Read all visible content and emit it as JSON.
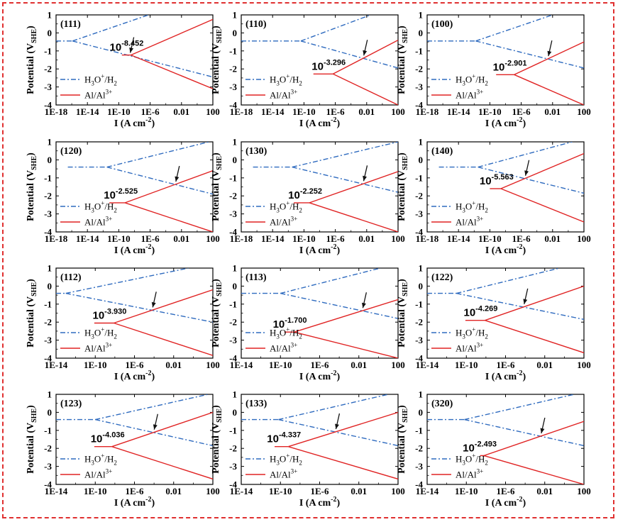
{
  "chart_data": [
    {
      "type": "line",
      "title": "(111)",
      "xlabel": "I (A cm",
      "ylabel": "Potential (V",
      "xlim": [
        -18,
        2
      ],
      "ylim": [
        -4,
        1
      ],
      "xticks": [
        "1E-18",
        "1E-14",
        "1E-10",
        "1E-6",
        "0.01",
        "100"
      ],
      "yticks": [
        "1",
        "0",
        "-1",
        "-2",
        "-3",
        "-4"
      ],
      "legend": [
        "H3O+/H2",
        "Al/Al3+"
      ],
      "legend_position": "left",
      "h3o": {
        "eq": [
          [
            -18,
            -0.45
          ],
          [
            -15.9,
            -0.45
          ]
        ],
        "anodic": [
          [
            -15.9,
            -0.45
          ],
          [
            -6.2,
            1
          ]
        ],
        "cathodic": [
          [
            -15.9,
            -0.45
          ],
          [
            2,
            -2.45
          ]
        ]
      },
      "al": {
        "eq": [
          [
            -9.6,
            -1.23
          ],
          [
            -8.45,
            -1.23
          ]
        ],
        "anodic": [
          [
            -8.45,
            -1.23
          ],
          [
            2,
            0.75
          ]
        ],
        "cathodic": [
          [
            -8.45,
            -1.23
          ],
          [
            2,
            -3.1
          ]
        ]
      },
      "exchange_label": "10",
      "exchange_exp": "-8.452"
    },
    {
      "type": "line",
      "title": "(110)",
      "xlabel": "I (A cm",
      "ylabel": "Potential (V",
      "xlim": [
        -18,
        2
      ],
      "ylim": [
        -4,
        1
      ],
      "xticks": [
        "1E-18",
        "1E-14",
        "1E-10",
        "1E-6",
        "0.01",
        "100"
      ],
      "yticks": [
        "1",
        "0",
        "-1",
        "-2",
        "-3",
        "-4"
      ],
      "legend": [
        "H3O+/H2",
        "Al/Al3+"
      ],
      "legend_position": "left",
      "h3o": {
        "eq": [
          [
            -18,
            -0.45
          ],
          [
            -10.4,
            -0.45
          ]
        ],
        "anodic": [
          [
            -10.4,
            -0.45
          ],
          [
            -1.5,
            1
          ]
        ],
        "cathodic": [
          [
            -10.4,
            -0.45
          ],
          [
            2,
            -1.95
          ]
        ]
      },
      "al": {
        "eq": [
          [
            -8.8,
            -2.28
          ],
          [
            -6.3,
            -2.28
          ]
        ],
        "anodic": [
          [
            -6.3,
            -2.28
          ],
          [
            2,
            -0.4
          ]
        ],
        "cathodic": [
          [
            -6.3,
            -2.28
          ],
          [
            2,
            -4
          ]
        ]
      },
      "exchange_label": "10",
      "exchange_exp": "-3.296"
    },
    {
      "type": "line",
      "title": "(100)",
      "xlabel": "I (A cm",
      "ylabel": "Potential (V",
      "xlim": [
        -18,
        2
      ],
      "ylim": [
        -4,
        1
      ],
      "xticks": [
        "1E-18",
        "1E-14",
        "1E-10",
        "1E-6",
        "0.01",
        "100"
      ],
      "yticks": [
        "1",
        "0",
        "-1",
        "-2",
        "-3",
        "-4"
      ],
      "legend": [
        "H3O+/H2",
        "Al/Al3+"
      ],
      "legend_position": "left",
      "h3o": {
        "eq": [
          [
            -18,
            -0.45
          ],
          [
            -11.8,
            -0.45
          ]
        ],
        "anodic": [
          [
            -11.8,
            -0.45
          ],
          [
            -2,
            1
          ]
        ],
        "cathodic": [
          [
            -11.8,
            -0.45
          ],
          [
            2,
            -1.95
          ]
        ]
      },
      "al": {
        "eq": [
          [
            -9.2,
            -2.32
          ],
          [
            -6.9,
            -2.32
          ]
        ],
        "anodic": [
          [
            -6.9,
            -2.32
          ],
          [
            2,
            -0.5
          ]
        ],
        "cathodic": [
          [
            -6.9,
            -2.32
          ],
          [
            2,
            -4
          ]
        ]
      },
      "exchange_label": "10",
      "exchange_exp": "-2.901"
    },
    {
      "type": "line",
      "title": "(120)",
      "xlabel": "I (A cm",
      "ylabel": "Potential (V",
      "xlim": [
        -18,
        2
      ],
      "ylim": [
        -4,
        1
      ],
      "xticks": [
        "1E-18",
        "1E-14",
        "1E-10",
        "1E-6",
        "0.01",
        "100"
      ],
      "yticks": [
        "1",
        "0",
        "-1",
        "-2",
        "-3",
        "-4"
      ],
      "legend": [
        "H3O+/H2",
        "Al/Al3+"
      ],
      "legend_position": "left",
      "h3o": {
        "eq": [
          [
            -16.5,
            -0.4
          ],
          [
            -11.5,
            -0.4
          ]
        ],
        "anodic": [
          [
            -11.5,
            -0.4
          ],
          [
            1.5,
            1
          ]
        ],
        "cathodic": [
          [
            -11.5,
            -0.4
          ],
          [
            2,
            -1.9
          ]
        ]
      },
      "al": {
        "eq": [
          [
            -11.2,
            -2.38
          ],
          [
            -9.2,
            -2.38
          ]
        ],
        "anodic": [
          [
            -9.2,
            -2.38
          ],
          [
            2,
            -0.6
          ]
        ],
        "cathodic": [
          [
            -9.2,
            -2.38
          ],
          [
            2,
            -4
          ]
        ]
      },
      "exchange_label": "10",
      "exchange_exp": "-2.525"
    },
    {
      "type": "line",
      "title": "(130)",
      "xlabel": "I (A cm",
      "ylabel": "Potential (V",
      "xlim": [
        -18,
        2
      ],
      "ylim": [
        -4,
        1
      ],
      "xticks": [
        "1E-18",
        "1E-14",
        "1E-10",
        "1E-6",
        "0.01",
        "100"
      ],
      "yticks": [
        "1",
        "0",
        "-1",
        "-2",
        "-3",
        "-4"
      ],
      "legend": [
        "H3O+/H2",
        "Al/Al3+"
      ],
      "legend_position": "left",
      "h3o": {
        "eq": [
          [
            -16.5,
            -0.4
          ],
          [
            -11.5,
            -0.4
          ]
        ],
        "anodic": [
          [
            -11.5,
            -0.4
          ],
          [
            2,
            1
          ]
        ],
        "cathodic": [
          [
            -11.5,
            -0.4
          ],
          [
            2,
            -1.8
          ]
        ]
      },
      "al": {
        "eq": [
          [
            -11.3,
            -2.38
          ],
          [
            -9.3,
            -2.38
          ]
        ],
        "anodic": [
          [
            -9.3,
            -2.38
          ],
          [
            2,
            -0.65
          ]
        ],
        "cathodic": [
          [
            -9.3,
            -2.38
          ],
          [
            2,
            -4
          ]
        ]
      },
      "exchange_label": "10",
      "exchange_exp": "-2.252"
    },
    {
      "type": "line",
      "title": "(140)",
      "xlabel": "I (A cm",
      "ylabel": "Potential (V",
      "xlim": [
        -18,
        2
      ],
      "ylim": [
        -4,
        1
      ],
      "xticks": [
        "1E-18",
        "1E-14",
        "1E-10",
        "1E-6",
        "0.01",
        "100"
      ],
      "yticks": [
        "1",
        "0",
        "-1",
        "-2",
        "-3",
        "-4"
      ],
      "legend": [
        "H3O+/H2",
        "Al/Al3+"
      ],
      "legend_position": "left",
      "h3o": {
        "eq": [
          [
            -16.5,
            -0.4
          ],
          [
            -11.5,
            -0.4
          ]
        ],
        "anodic": [
          [
            -11.5,
            -0.4
          ],
          [
            0.5,
            1
          ]
        ],
        "cathodic": [
          [
            -11.5,
            -0.4
          ],
          [
            2,
            -1.85
          ]
        ]
      },
      "al": {
        "eq": [
          [
            -10,
            -1.6
          ],
          [
            -8.6,
            -1.6
          ]
        ],
        "anodic": [
          [
            -8.6,
            -1.6
          ],
          [
            2,
            0.35
          ]
        ],
        "cathodic": [
          [
            -8.6,
            -1.6
          ],
          [
            2,
            -3.45
          ]
        ]
      },
      "exchange_label": "10",
      "exchange_exp": "-5.563"
    },
    {
      "type": "line",
      "title": "(112)",
      "xlabel": "I (A cm",
      "ylabel": "Potential (V",
      "xlim": [
        -14,
        2
      ],
      "ylim": [
        -4,
        1
      ],
      "xticks": [
        "1E-14",
        "1E-10",
        "1E-6",
        "0.01",
        "100"
      ],
      "yticks": [
        "1",
        "0",
        "-1",
        "-2",
        "-3",
        "-4"
      ],
      "legend": [
        "H3O+/H2",
        "Al/Al3+"
      ],
      "legend_position": "left",
      "h3o": {
        "eq": [
          [
            -14,
            -0.4
          ],
          [
            -13,
            -0.4
          ]
        ],
        "anodic": [
          [
            -13,
            -0.4
          ],
          [
            -0.5,
            1
          ]
        ],
        "cathodic": [
          [
            -13,
            -0.4
          ],
          [
            2,
            -2
          ]
        ]
      },
      "al": {
        "eq": [
          [
            -10.1,
            -2.05
          ],
          [
            -8.1,
            -2.05
          ]
        ],
        "anodic": [
          [
            -8.1,
            -2.05
          ],
          [
            2,
            -0.2
          ]
        ],
        "cathodic": [
          [
            -8.1,
            -2.05
          ],
          [
            2,
            -3.85
          ]
        ]
      },
      "exchange_label": "10",
      "exchange_exp": "-3.930"
    },
    {
      "type": "line",
      "title": "(113)",
      "xlabel": "I (A cm",
      "ylabel": "Potential (V",
      "xlim": [
        -14,
        2
      ],
      "ylim": [
        -4,
        1
      ],
      "xticks": [
        "1E-14",
        "1E-10",
        "1E-6",
        "0.01",
        "100"
      ],
      "yticks": [
        "1",
        "0",
        "-1",
        "-2",
        "-3",
        "-4"
      ],
      "legend": [
        "H3O+/H2",
        "Al/Al3+"
      ],
      "legend_position": "left",
      "h3o": {
        "eq": [
          [
            -14,
            -0.4
          ],
          [
            -10,
            -0.4
          ]
        ],
        "anodic": [
          [
            -10,
            -0.4
          ],
          [
            0.2,
            1
          ]
        ],
        "cathodic": [
          [
            -10,
            -0.4
          ],
          [
            2,
            -1.8
          ]
        ]
      },
      "al": {
        "eq": [
          [
            -9.6,
            -2.55
          ],
          [
            -8.6,
            -2.55
          ]
        ],
        "anodic": [
          [
            -8.6,
            -2.55
          ],
          [
            2,
            -0.75
          ]
        ],
        "cathodic": [
          [
            -8.6,
            -2.55
          ],
          [
            2,
            -4
          ]
        ]
      },
      "exchange_label": "10",
      "exchange_exp": "-1.700"
    },
    {
      "type": "line",
      "title": "(122)",
      "xlabel": "I (A cm",
      "ylabel": "Potential (V",
      "xlim": [
        -14,
        2
      ],
      "ylim": [
        -4,
        1
      ],
      "xticks": [
        "1E-14",
        "1E-10",
        "1E-6",
        "0.01",
        "100"
      ],
      "yticks": [
        "1",
        "0",
        "-1",
        "-2",
        "-3",
        "-4"
      ],
      "legend": [
        "H3O+/H2",
        "Al/Al3+"
      ],
      "legend_position": "left",
      "h3o": {
        "eq": [
          [
            -14,
            -0.4
          ],
          [
            -11,
            -0.4
          ]
        ],
        "anodic": [
          [
            -11,
            -0.4
          ],
          [
            -0.5,
            1
          ]
        ],
        "cathodic": [
          [
            -11,
            -0.4
          ],
          [
            2,
            -1.85
          ]
        ]
      },
      "al": {
        "eq": [
          [
            -10.1,
            -1.9
          ],
          [
            -8.1,
            -1.9
          ]
        ],
        "anodic": [
          [
            -8.1,
            -1.9
          ],
          [
            2,
            0
          ]
        ],
        "cathodic": [
          [
            -8.1,
            -1.9
          ],
          [
            2,
            -3.7
          ]
        ]
      },
      "exchange_label": "10",
      "exchange_exp": "-4.269"
    },
    {
      "type": "line",
      "title": "(123)",
      "xlabel": "I (A cm",
      "ylabel": "Potential (V",
      "xlim": [
        -14,
        2
      ],
      "ylim": [
        -4,
        1
      ],
      "xticks": [
        "1E-14",
        "1E-10",
        "1E-6",
        "0.01",
        "100"
      ],
      "yticks": [
        "1",
        "0",
        "-1",
        "-2",
        "-3",
        "-4"
      ],
      "legend": [
        "H3O+/H2",
        "Al/Al3+"
      ],
      "legend_position": "left",
      "h3o": {
        "eq": [
          [
            -14,
            -0.4
          ],
          [
            -10,
            -0.4
          ]
        ],
        "anodic": [
          [
            -10,
            -0.4
          ],
          [
            1.5,
            1
          ]
        ],
        "cathodic": [
          [
            -10,
            -0.4
          ],
          [
            2,
            -1.85
          ]
        ]
      },
      "al": {
        "eq": [
          [
            -10.1,
            -1.9
          ],
          [
            -8.3,
            -1.9
          ]
        ],
        "anodic": [
          [
            -8.3,
            -1.9
          ],
          [
            2,
            0
          ]
        ],
        "cathodic": [
          [
            -8.3,
            -1.9
          ],
          [
            2,
            -3.7
          ]
        ]
      },
      "exchange_label": "10",
      "exchange_exp": "-4.036"
    },
    {
      "type": "line",
      "title": "(133)",
      "xlabel": "I (A cm",
      "ylabel": "Potential (V",
      "xlim": [
        -14,
        2
      ],
      "ylim": [
        -4,
        1
      ],
      "xticks": [
        "1E-14",
        "1E-10",
        "1E-6",
        "0.01",
        "100"
      ],
      "yticks": [
        "1",
        "0",
        "-1",
        "-2",
        "-3",
        "-4"
      ],
      "legend": [
        "H3O+/H2",
        "Al/Al3+"
      ],
      "legend_position": "left",
      "h3o": {
        "eq": [
          [
            -14,
            -0.4
          ],
          [
            -10.2,
            -0.4
          ]
        ],
        "anodic": [
          [
            -10.2,
            -0.4
          ],
          [
            1,
            1
          ]
        ],
        "cathodic": [
          [
            -10.2,
            -0.4
          ],
          [
            2,
            -1.85
          ]
        ]
      },
      "al": {
        "eq": [
          [
            -10.6,
            -1.9
          ],
          [
            -9.2,
            -1.9
          ]
        ],
        "anodic": [
          [
            -9.2,
            -1.9
          ],
          [
            2,
            0
          ]
        ],
        "cathodic": [
          [
            -9.2,
            -1.9
          ],
          [
            2,
            -3.7
          ]
        ]
      },
      "exchange_label": "10",
      "exchange_exp": "-4.337"
    },
    {
      "type": "line",
      "title": "(320)",
      "xlabel": "I (A cm",
      "ylabel": "Potential (V",
      "xlim": [
        -14,
        2
      ],
      "ylim": [
        -4,
        1
      ],
      "xticks": [
        "1E-14",
        "1E-10",
        "1E-6",
        "0.01",
        "100"
      ],
      "yticks": [
        "1",
        "0",
        "-1",
        "-2",
        "-3",
        "-4"
      ],
      "legend": [
        "H3O+/H2",
        "Al/Al3+"
      ],
      "legend_position": "left",
      "h3o": {
        "eq": [
          [
            -14,
            -0.4
          ],
          [
            -10.2,
            -0.4
          ]
        ],
        "anodic": [
          [
            -10.2,
            -0.4
          ],
          [
            1,
            1
          ]
        ],
        "cathodic": [
          [
            -10.2,
            -0.4
          ],
          [
            2,
            -1.85
          ]
        ]
      },
      "al": {
        "eq": [
          [
            -8.6,
            -2.4
          ],
          [
            -8.2,
            -2.4
          ]
        ],
        "anodic": [
          [
            -8.2,
            -2.4
          ],
          [
            2,
            -0.5
          ]
        ],
        "cathodic": [
          [
            -8.2,
            -2.4
          ],
          [
            2,
            -4
          ]
        ]
      },
      "exchange_label": "10",
      "exchange_exp": "-2.493"
    }
  ],
  "colors": {
    "h3o": "#2f6bbf",
    "al": "#e02424",
    "frame": "#e03030",
    "axis": "#000000"
  }
}
